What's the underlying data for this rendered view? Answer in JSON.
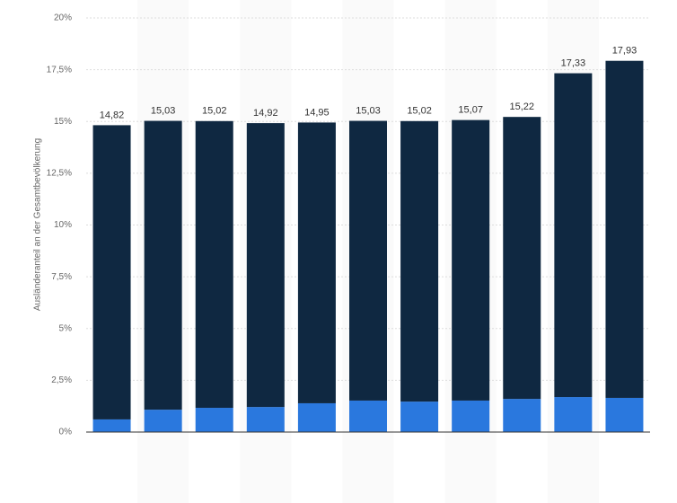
{
  "chart_data": {
    "type": "stacked_bar",
    "y_label": "Ausländeranteil an der Gesamtbevölkerung",
    "categories": [
      null,
      null,
      null,
      null,
      null,
      null,
      null,
      null,
      null,
      null,
      null
    ],
    "series": [
      {
        "color": "#2a78de",
        "values": [
          0.61,
          1.08,
          1.17,
          1.21,
          1.39,
          1.52,
          1.47,
          1.52,
          1.6,
          1.69,
          1.65
        ]
      },
      {
        "color": "#0f2841",
        "values": [
          14.21,
          13.95,
          13.85,
          13.71,
          13.56,
          13.51,
          13.55,
          13.55,
          13.62,
          15.64,
          16.28
        ]
      }
    ],
    "totals": [
      14.82,
      15.03,
      15.02,
      14.92,
      14.95,
      15.03,
      15.02,
      15.07,
      15.22,
      17.33,
      17.93
    ],
    "total_labels": [
      "14,82",
      "15,03",
      "15,02",
      "14,92",
      "14,95",
      "15,03",
      "15,02",
      "15,07",
      "15,22",
      "17,33",
      "17,93"
    ],
    "ylim": [
      0,
      20
    ],
    "yticks": [
      {
        "value": 0,
        "label": "0%"
      },
      {
        "value": 2.5,
        "label": "2,5%"
      },
      {
        "value": 5,
        "label": "5%"
      },
      {
        "value": 7.5,
        "label": "7,5%"
      },
      {
        "value": 10,
        "label": "10%"
      },
      {
        "value": 12.5,
        "label": "12,5%"
      },
      {
        "value": 15,
        "label": "15%"
      },
      {
        "value": 17.5,
        "label": "17,5%"
      },
      {
        "value": 20,
        "label": "20%"
      }
    ],
    "grid": true
  }
}
